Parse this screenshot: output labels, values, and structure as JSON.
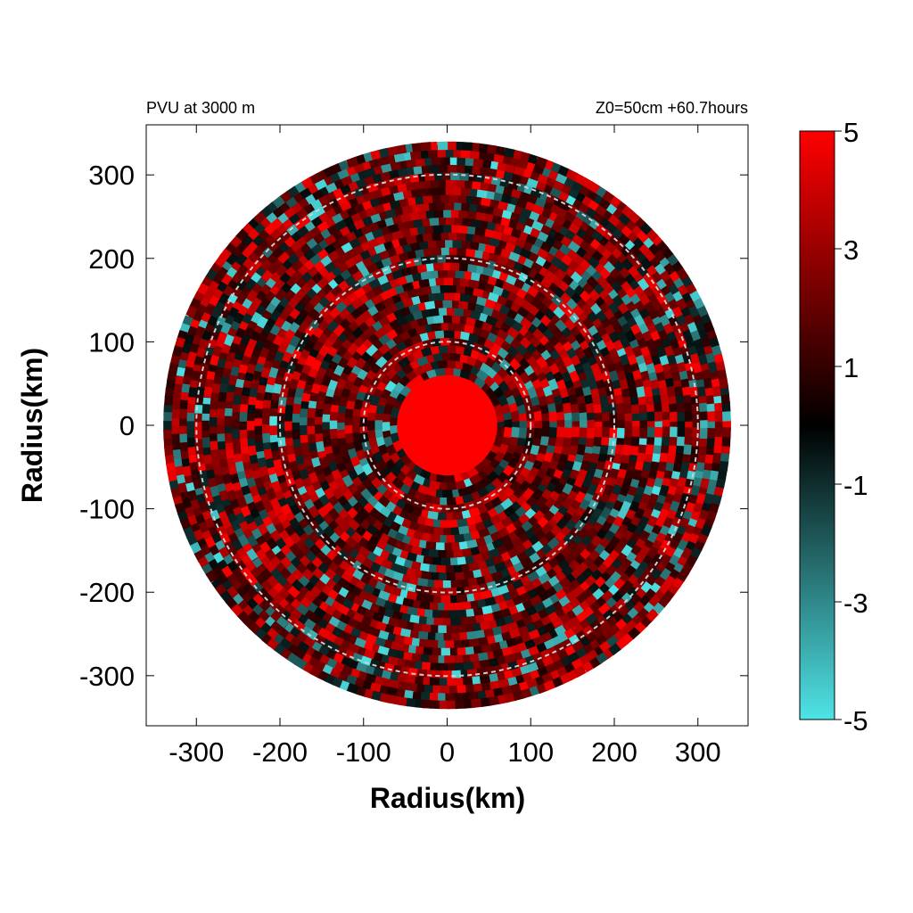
{
  "chart_data": {
    "type": "heatmap",
    "title_left": "PVU at  3000 m",
    "title_right": "Z0=50cm  +60.7hours",
    "xlabel": "Radius(km)",
    "ylabel": "Radius(km)",
    "xlim": [
      -360,
      360
    ],
    "ylim": [
      -360,
      360
    ],
    "xticks": [
      -300,
      -200,
      -100,
      0,
      100,
      200,
      300
    ],
    "yticks": [
      300,
      200,
      100,
      0,
      -100,
      -200,
      -300
    ],
    "xtick_labels": [
      "-300",
      "-200",
      "-100",
      "0",
      "100",
      "200",
      "300"
    ],
    "ytick_labels": [
      "300",
      "200",
      "100",
      "0",
      "-100",
      "-200",
      "-300"
    ],
    "domain_radius_km": 360,
    "reference_circles_km": [
      100,
      200,
      300
    ],
    "colorbar": {
      "min": -5,
      "max": 5,
      "ticks": [
        5,
        3,
        1,
        -1,
        -3,
        -5
      ],
      "tick_labels": [
        "5",
        "3",
        "1",
        "-1",
        "-3",
        "-5"
      ],
      "colors": {
        "min": "#4fe3e6",
        "mid": "#000000",
        "max": "#ff0000"
      }
    },
    "features": {
      "core": {
        "radius_km": 60,
        "value": 5
      },
      "background_value": 1.8
    }
  }
}
